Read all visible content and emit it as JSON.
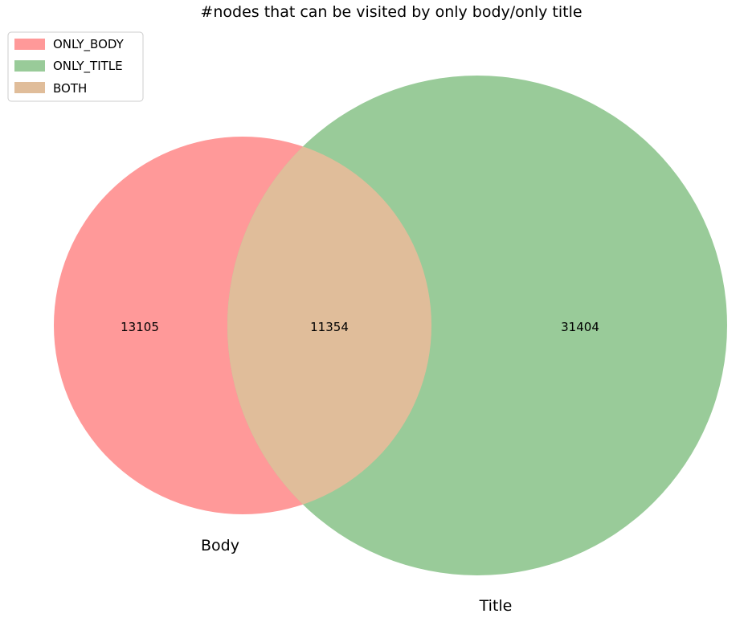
{
  "chart_data": {
    "type": "venn",
    "title": "#nodes that can be visited by only body/only title",
    "sets": [
      {
        "key": "body",
        "label": "Body"
      },
      {
        "key": "title",
        "label": "Title"
      }
    ],
    "regions": [
      {
        "key": "only_body",
        "legend": "ONLY_BODY",
        "value": 13105,
        "color": "#ff9999"
      },
      {
        "key": "only_title",
        "legend": "ONLY_TITLE",
        "value": 31404,
        "color": "#99cb99"
      },
      {
        "key": "both",
        "legend": "BOTH",
        "value": 11354,
        "color": "#e0bd9a"
      }
    ],
    "legend_position": "top-left"
  }
}
